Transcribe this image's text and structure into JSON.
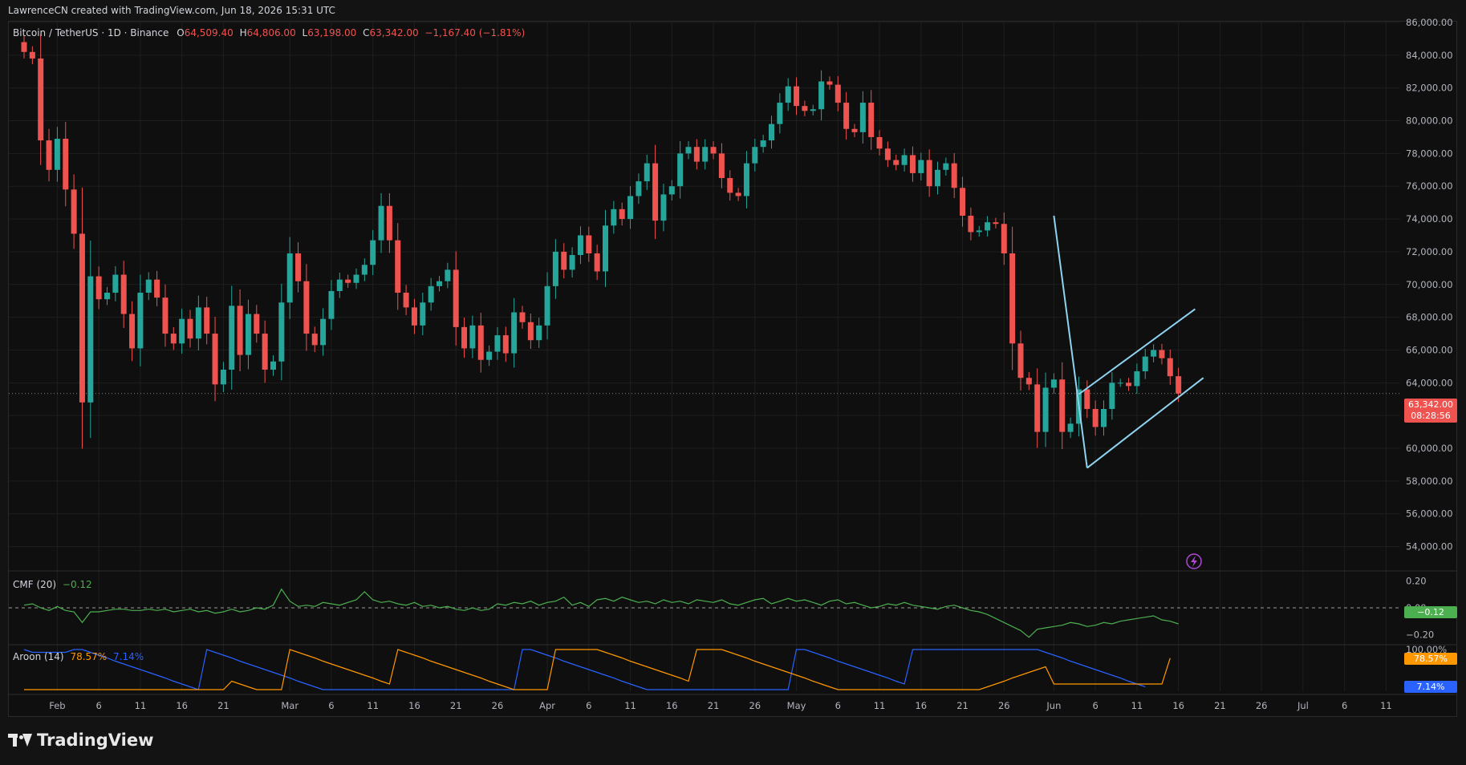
{
  "credit": "LawrenceCN created with TradingView.com, Jun 18, 2026 15:31 UTC",
  "brand": "TradingView",
  "legend": {
    "symbol": "Bitcoin / TetherUS · 1D · Binance",
    "open_label": "O",
    "open": "64,509.40",
    "high_label": "H",
    "high": "64,806.00",
    "low_label": "L",
    "low": "63,198.00",
    "close_label": "C",
    "close": "63,342.00",
    "change": "−1,167.40 (−1.81%)"
  },
  "price_tag": {
    "price": "63,342.00",
    "countdown": "08:28:56"
  },
  "cmf": {
    "label": "CMF (20)",
    "value": "−0.12",
    "tag": "−0.12"
  },
  "aroon": {
    "label": "Aroon (14)",
    "up": "78.57%",
    "down": "7.14%"
  },
  "colors": {
    "up": "#26a69a",
    "down": "#ef5350",
    "cmf": "#4caf50",
    "aroon_up": "#ff9800",
    "aroon_down": "#2962ff",
    "trendline": "#8fd3f0"
  },
  "chart_data": {
    "type": "candlestick",
    "symbol": "Bitcoin / TetherUS",
    "interval": "1D",
    "exchange": "Binance",
    "x_start": "2026-01-28",
    "ylim": [
      53000,
      86000
    ],
    "y_ticks": [
      54000,
      56000,
      58000,
      60000,
      62000,
      64000,
      66000,
      68000,
      70000,
      72000,
      74000,
      76000,
      78000,
      80000,
      82000,
      84000,
      86000
    ],
    "y_tick_labels": [
      "54,000.00",
      "56,000.00",
      "58,000.00",
      "60,000.00",
      "62,000.00",
      "64,000.00",
      "66,000.00",
      "68,000.00",
      "70,000.00",
      "72,000.00",
      "74,000.00",
      "76,000.00",
      "78,000.00",
      "80,000.00",
      "82,000.00",
      "84,000.00",
      "86,000.00"
    ],
    "x_ticks": [
      {
        "date": "2026-02-01",
        "label": "Feb"
      },
      {
        "date": "2026-02-06",
        "label": "6"
      },
      {
        "date": "2026-02-11",
        "label": "11"
      },
      {
        "date": "2026-02-16",
        "label": "16"
      },
      {
        "date": "2026-02-21",
        "label": "21"
      },
      {
        "date": "2026-03-01",
        "label": "Mar"
      },
      {
        "date": "2026-03-06",
        "label": "6"
      },
      {
        "date": "2026-03-11",
        "label": "11"
      },
      {
        "date": "2026-03-16",
        "label": "16"
      },
      {
        "date": "2026-03-21",
        "label": "21"
      },
      {
        "date": "2026-03-26",
        "label": "26"
      },
      {
        "date": "2026-04-01",
        "label": "Apr"
      },
      {
        "date": "2026-04-06",
        "label": "6"
      },
      {
        "date": "2026-04-11",
        "label": "11"
      },
      {
        "date": "2026-04-16",
        "label": "16"
      },
      {
        "date": "2026-04-21",
        "label": "21"
      },
      {
        "date": "2026-04-26",
        "label": "26"
      },
      {
        "date": "2026-05-01",
        "label": "May"
      },
      {
        "date": "2026-05-06",
        "label": "6"
      },
      {
        "date": "2026-05-11",
        "label": "11"
      },
      {
        "date": "2026-05-16",
        "label": "16"
      },
      {
        "date": "2026-05-21",
        "label": "21"
      },
      {
        "date": "2026-05-26",
        "label": "26"
      },
      {
        "date": "2026-06-01",
        "label": "Jun"
      },
      {
        "date": "2026-06-06",
        "label": "6"
      },
      {
        "date": "2026-06-11",
        "label": "11"
      },
      {
        "date": "2026-06-16",
        "label": "16"
      },
      {
        "date": "2026-06-21",
        "label": "21"
      },
      {
        "date": "2026-06-26",
        "label": "26"
      },
      {
        "date": "2026-07-01",
        "label": "Jul"
      },
      {
        "date": "2026-07-06",
        "label": "6"
      },
      {
        "date": "2026-07-11",
        "label": "11"
      }
    ],
    "closes": [
      84200,
      83800,
      78800,
      77000,
      78900,
      75800,
      73100,
      62800,
      70500,
      69100,
      69500,
      70600,
      68200,
      66100,
      69500,
      70300,
      69200,
      67000,
      66400,
      67900,
      66700,
      68600,
      67000,
      63900,
      64800,
      68700,
      65700,
      68200,
      67000,
      64800,
      65300,
      68900,
      71900,
      70200,
      67000,
      66300,
      67900,
      69600,
      70300,
      70100,
      70600,
      71200,
      72700,
      74800,
      72700,
      69500,
      68600,
      67500,
      68900,
      69900,
      70200,
      70900,
      67400,
      66100,
      67500,
      65400,
      65900,
      66900,
      65800,
      68300,
      67700,
      66600,
      67500,
      69900,
      72000,
      70900,
      71800,
      73000,
      71900,
      70800,
      73600,
      74600,
      74000,
      75400,
      76300,
      77400,
      73900,
      75500,
      76000,
      78000,
      78400,
      77500,
      78400,
      78000,
      76500,
      75600,
      75400,
      77400,
      78400,
      78800,
      79800,
      81100,
      82100,
      80900,
      80600,
      80700,
      82400,
      82200,
      81100,
      79500,
      79300,
      81100,
      79000,
      78300,
      77600,
      77300,
      77900,
      76800,
      77600,
      76000,
      77000,
      77400,
      75900,
      74200,
      73200,
      73300,
      73800,
      73700,
      71900,
      66400,
      64300,
      63900,
      61000,
      63700,
      64200,
      61000,
      61500,
      63600,
      62400,
      61300,
      62400,
      64000,
      64000,
      63800,
      64700,
      65600,
      66000,
      65500,
      64400,
      63342
    ],
    "cmf_ylim": [
      -0.27,
      0.27
    ],
    "cmf_ticks": [
      0.2,
      0,
      -0.2
    ],
    "cmf_tick_labels": [
      "0.20",
      "0.00",
      "−0.20"
    ],
    "cmf": [
      0.02,
      0.03,
      0.0,
      -0.02,
      0.01,
      -0.02,
      -0.03,
      -0.11,
      -0.03,
      -0.03,
      -0.02,
      -0.01,
      -0.01,
      -0.02,
      -0.02,
      -0.01,
      -0.02,
      -0.01,
      -0.03,
      -0.02,
      -0.01,
      -0.03,
      -0.02,
      -0.04,
      -0.03,
      -0.01,
      -0.03,
      -0.02,
      0.0,
      -0.01,
      0.02,
      0.14,
      0.05,
      0.01,
      0.02,
      0.01,
      0.04,
      0.03,
      0.02,
      0.04,
      0.06,
      0.12,
      0.06,
      0.04,
      0.05,
      0.03,
      0.02,
      0.04,
      0.01,
      0.02,
      0.0,
      0.01,
      -0.01,
      -0.02,
      0.0,
      -0.02,
      -0.01,
      0.03,
      0.02,
      0.04,
      0.03,
      0.05,
      0.02,
      0.04,
      0.05,
      0.08,
      0.02,
      0.04,
      0.01,
      0.06,
      0.07,
      0.05,
      0.08,
      0.06,
      0.04,
      0.05,
      0.03,
      0.06,
      0.04,
      0.05,
      0.03,
      0.06,
      0.05,
      0.04,
      0.06,
      0.03,
      0.02,
      0.04,
      0.06,
      0.07,
      0.03,
      0.05,
      0.07,
      0.05,
      0.06,
      0.04,
      0.02,
      0.05,
      0.06,
      0.03,
      0.04,
      0.02,
      0.0,
      0.01,
      0.03,
      0.02,
      0.04,
      0.02,
      0.01,
      0.0,
      -0.01,
      0.01,
      0.02,
      0.0,
      -0.02,
      -0.03,
      -0.05,
      -0.08,
      -0.11,
      -0.14,
      -0.17,
      -0.22,
      -0.16,
      -0.15,
      -0.14,
      -0.13,
      -0.11,
      -0.12,
      -0.14,
      -0.13,
      -0.11,
      -0.12,
      -0.1,
      -0.09,
      -0.08,
      -0.07,
      -0.06,
      -0.09,
      -0.1,
      -0.12
    ],
    "aroon_ylim": [
      0,
      100
    ],
    "aroon_ticks": [
      100
    ],
    "aroon_tick_labels": [
      "100.00%"
    ],
    "aroon_up": [
      0,
      0,
      0,
      0,
      0,
      0,
      0,
      0,
      0,
      0,
      0,
      0,
      0,
      0,
      0,
      0,
      0,
      0,
      0,
      0,
      0,
      0,
      0,
      0,
      0,
      21,
      14,
      7,
      0,
      0,
      0,
      0,
      100,
      93,
      86,
      79,
      71,
      64,
      57,
      50,
      43,
      36,
      29,
      21,
      14,
      100,
      93,
      86,
      79,
      71,
      64,
      57,
      50,
      43,
      36,
      29,
      21,
      14,
      7,
      0,
      0,
      0,
      0,
      0,
      100,
      100,
      100,
      100,
      100,
      100,
      93,
      86,
      79,
      71,
      64,
      57,
      50,
      43,
      36,
      29,
      21,
      100,
      100,
      100,
      100,
      93,
      86,
      79,
      71,
      64,
      57,
      50,
      43,
      36,
      29,
      21,
      14,
      7,
      0,
      0,
      0,
      0,
      0,
      0,
      0,
      0,
      0,
      0,
      0,
      0,
      0,
      0,
      0,
      0,
      0,
      0,
      7,
      14,
      21,
      29,
      36,
      43,
      50,
      57,
      14,
      14,
      14,
      14,
      14,
      14,
      14,
      14,
      14,
      14,
      14,
      14,
      14,
      14,
      78.57
    ],
    "aroon_down": [
      100,
      93,
      93,
      93,
      93,
      93,
      100,
      100,
      93,
      86,
      79,
      71,
      64,
      57,
      50,
      43,
      36,
      29,
      21,
      14,
      7,
      0,
      100,
      93,
      86,
      79,
      71,
      64,
      57,
      50,
      43,
      36,
      29,
      21,
      14,
      7,
      0,
      0,
      0,
      0,
      0,
      0,
      0,
      0,
      0,
      0,
      0,
      0,
      0,
      0,
      0,
      0,
      0,
      0,
      0,
      0,
      0,
      0,
      0,
      0,
      100,
      100,
      93,
      86,
      79,
      71,
      64,
      57,
      50,
      43,
      36,
      29,
      21,
      14,
      7,
      0,
      0,
      0,
      0,
      0,
      0,
      0,
      0,
      0,
      0,
      0,
      0,
      0,
      0,
      0,
      0,
      0,
      0,
      100,
      100,
      93,
      86,
      79,
      71,
      64,
      57,
      50,
      43,
      36,
      29,
      21,
      14,
      100,
      100,
      100,
      100,
      100,
      100,
      100,
      100,
      100,
      100,
      100,
      100,
      100,
      100,
      100,
      100,
      93,
      86,
      79,
      71,
      64,
      57,
      50,
      43,
      36,
      29,
      21,
      14,
      7.14
    ],
    "trendlines": [
      {
        "from": {
          "date": "2026-06-01",
          "price": 74200
        },
        "to": {
          "date": "2026-06-05",
          "price": 58800
        }
      },
      {
        "from": {
          "date": "2026-06-05",
          "price": 58800
        },
        "to": {
          "date": "2026-06-19",
          "price": 64300
        }
      },
      {
        "from": {
          "date": "2026-06-04",
          "price": 63300
        },
        "to": {
          "date": "2026-06-18",
          "price": 68500
        }
      }
    ]
  }
}
